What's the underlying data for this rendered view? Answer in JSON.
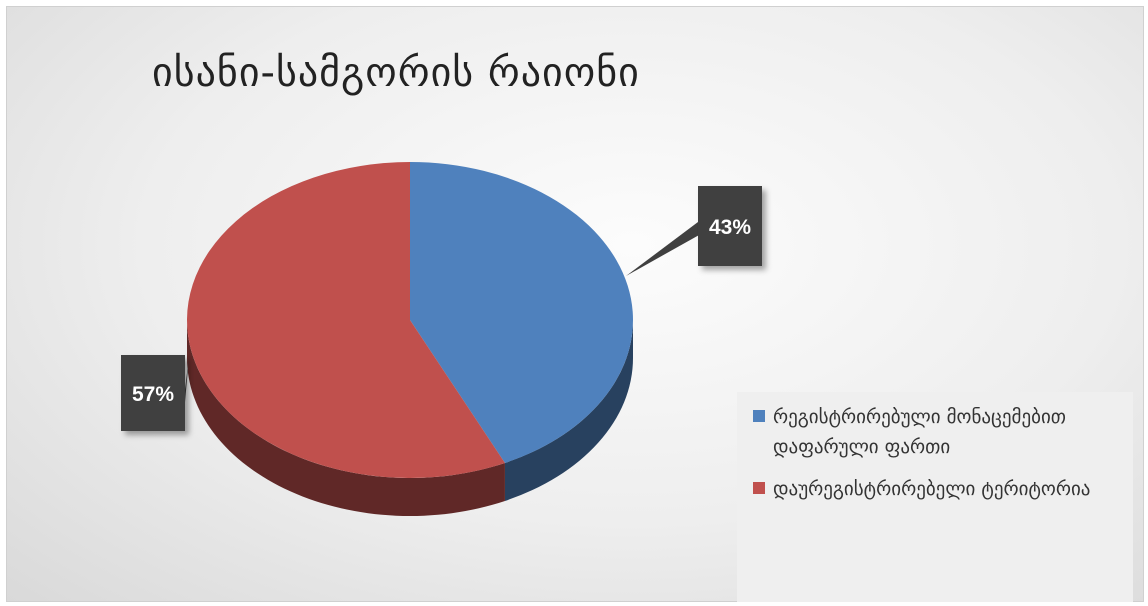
{
  "chart_data": {
    "type": "pie",
    "title": "ისანი-სამგორის რაიონი",
    "slices": [
      {
        "name": "რეგისტრირებული მონაცემებით დაფარული ფართი",
        "value": 43,
        "label": "43%",
        "color": "#4f81bd"
      },
      {
        "name": "დაურეგისტრირებელი ტერიტორია",
        "value": 57,
        "label": "57%",
        "color": "#c0504d"
      }
    ],
    "legend_position": "bottom-right"
  }
}
